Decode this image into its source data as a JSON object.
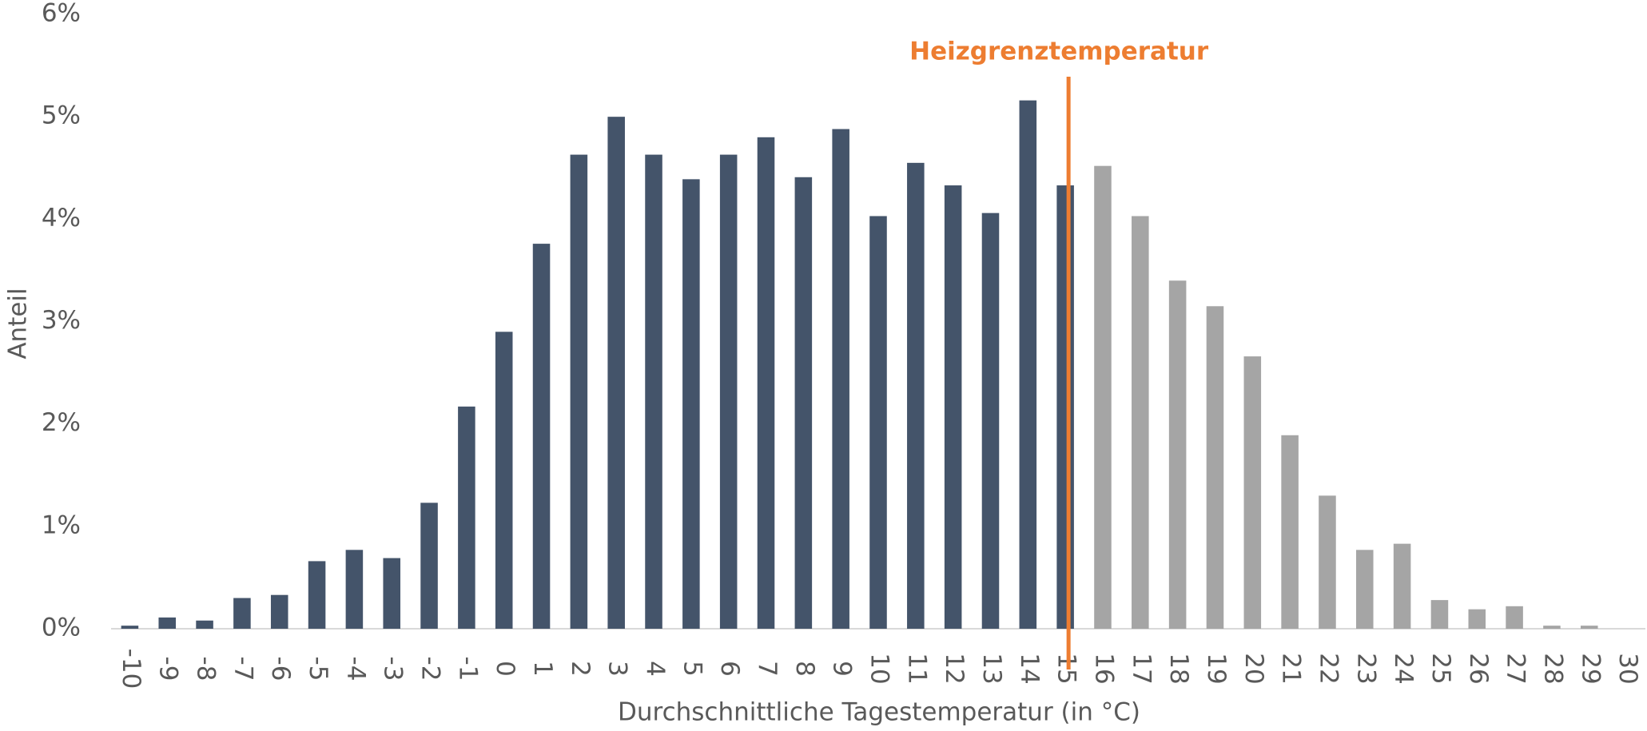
{
  "chart_data": {
    "type": "bar",
    "categories": [
      "-10",
      "-9",
      "-8",
      "-7",
      "-6",
      "-5",
      "-4",
      "-3",
      "-2",
      "-1",
      "0",
      "1",
      "2",
      "3",
      "4",
      "5",
      "6",
      "7",
      "8",
      "9",
      "10",
      "11",
      "12",
      "13",
      "14",
      "15",
      "16",
      "17",
      "18",
      "19",
      "20",
      "21",
      "22",
      "23",
      "24",
      "25",
      "26",
      "27",
      "28",
      "29",
      "30"
    ],
    "values": [
      0.03,
      0.11,
      0.08,
      0.3,
      0.33,
      0.66,
      0.77,
      0.69,
      1.23,
      2.17,
      2.9,
      3.76,
      4.63,
      5.0,
      4.63,
      4.39,
      4.63,
      4.8,
      4.41,
      4.88,
      4.03,
      4.55,
      4.33,
      4.06,
      5.16,
      4.33,
      4.52,
      4.03,
      3.4,
      3.15,
      2.66,
      1.89,
      1.3,
      0.77,
      0.83,
      0.28,
      0.19,
      0.22,
      0.03,
      0.03,
      0
    ],
    "colors": [
      "#44546a",
      "#44546a",
      "#44546a",
      "#44546a",
      "#44546a",
      "#44546a",
      "#44546a",
      "#44546a",
      "#44546a",
      "#44546a",
      "#44546a",
      "#44546a",
      "#44546a",
      "#44546a",
      "#44546a",
      "#44546a",
      "#44546a",
      "#44546a",
      "#44546a",
      "#44546a",
      "#44546a",
      "#44546a",
      "#44546a",
      "#44546a",
      "#44546a",
      "#44546a",
      "#a5a5a5",
      "#a5a5a5",
      "#a5a5a5",
      "#a5a5a5",
      "#a5a5a5",
      "#a5a5a5",
      "#a5a5a5",
      "#a5a5a5",
      "#a5a5a5",
      "#a5a5a5",
      "#a5a5a5",
      "#a5a5a5",
      "#a5a5a5",
      "#a5a5a5",
      "#a5a5a5"
    ],
    "ylim": [
      0,
      6
    ],
    "yticks": [
      {
        "value": 0,
        "label": "0%"
      },
      {
        "value": 1,
        "label": "1%"
      },
      {
        "value": 2,
        "label": "2%"
      },
      {
        "value": 3,
        "label": "3%"
      },
      {
        "value": 4,
        "label": "4%"
      },
      {
        "value": 5,
        "label": "5%"
      },
      {
        "value": 6,
        "label": "6%"
      }
    ],
    "x_label": "Durchschnittliche Tagestemperatur (in °C)",
    "y_label": "Anteil",
    "annotation": {
      "text": "Heizgrenztemperatur",
      "category": 25,
      "color": "#ed7d31"
    }
  }
}
